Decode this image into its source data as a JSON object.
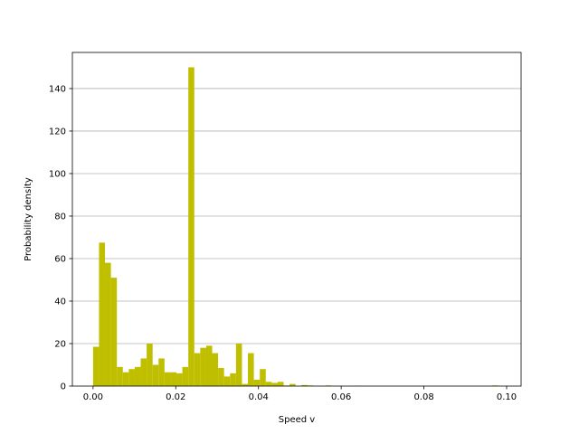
{
  "chart_data": {
    "type": "bar",
    "title": "",
    "xlabel": "Speed v",
    "ylabel": "Probability density",
    "xlim": [
      -0.005,
      0.1035
    ],
    "ylim": [
      0,
      157
    ],
    "xticks": [
      0.0,
      0.02,
      0.04,
      0.06,
      0.08,
      0.1
    ],
    "xtick_labels": [
      "0.00",
      "0.02",
      "0.04",
      "0.06",
      "0.08",
      "0.10"
    ],
    "yticks": [
      0,
      20,
      40,
      60,
      80,
      100,
      120,
      140
    ],
    "ytick_labels": [
      "0",
      "20",
      "40",
      "60",
      "80",
      "100",
      "120",
      "140"
    ],
    "grid": "horizontal",
    "bar_color": "#bfbf00",
    "bin_start": 0.0,
    "bin_width": 0.00144,
    "values": [
      18.5,
      67.5,
      58,
      51,
      9,
      6.5,
      8,
      9,
      13,
      20,
      10,
      13,
      6.5,
      6.5,
      6,
      9,
      150,
      15.5,
      18,
      19,
      15.5,
      8.5,
      4.5,
      6,
      20,
      1,
      15.5,
      3,
      8,
      2,
      1.5,
      2,
      0.3,
      1,
      0,
      0.5,
      0.3,
      0,
      0,
      0.3,
      0,
      0,
      0,
      0,
      0.2,
      0,
      0,
      0,
      0,
      0,
      0,
      0,
      0,
      0,
      0,
      0,
      0,
      0,
      0,
      0,
      0,
      0,
      0,
      0,
      0,
      0,
      0,
      0.3
    ]
  }
}
